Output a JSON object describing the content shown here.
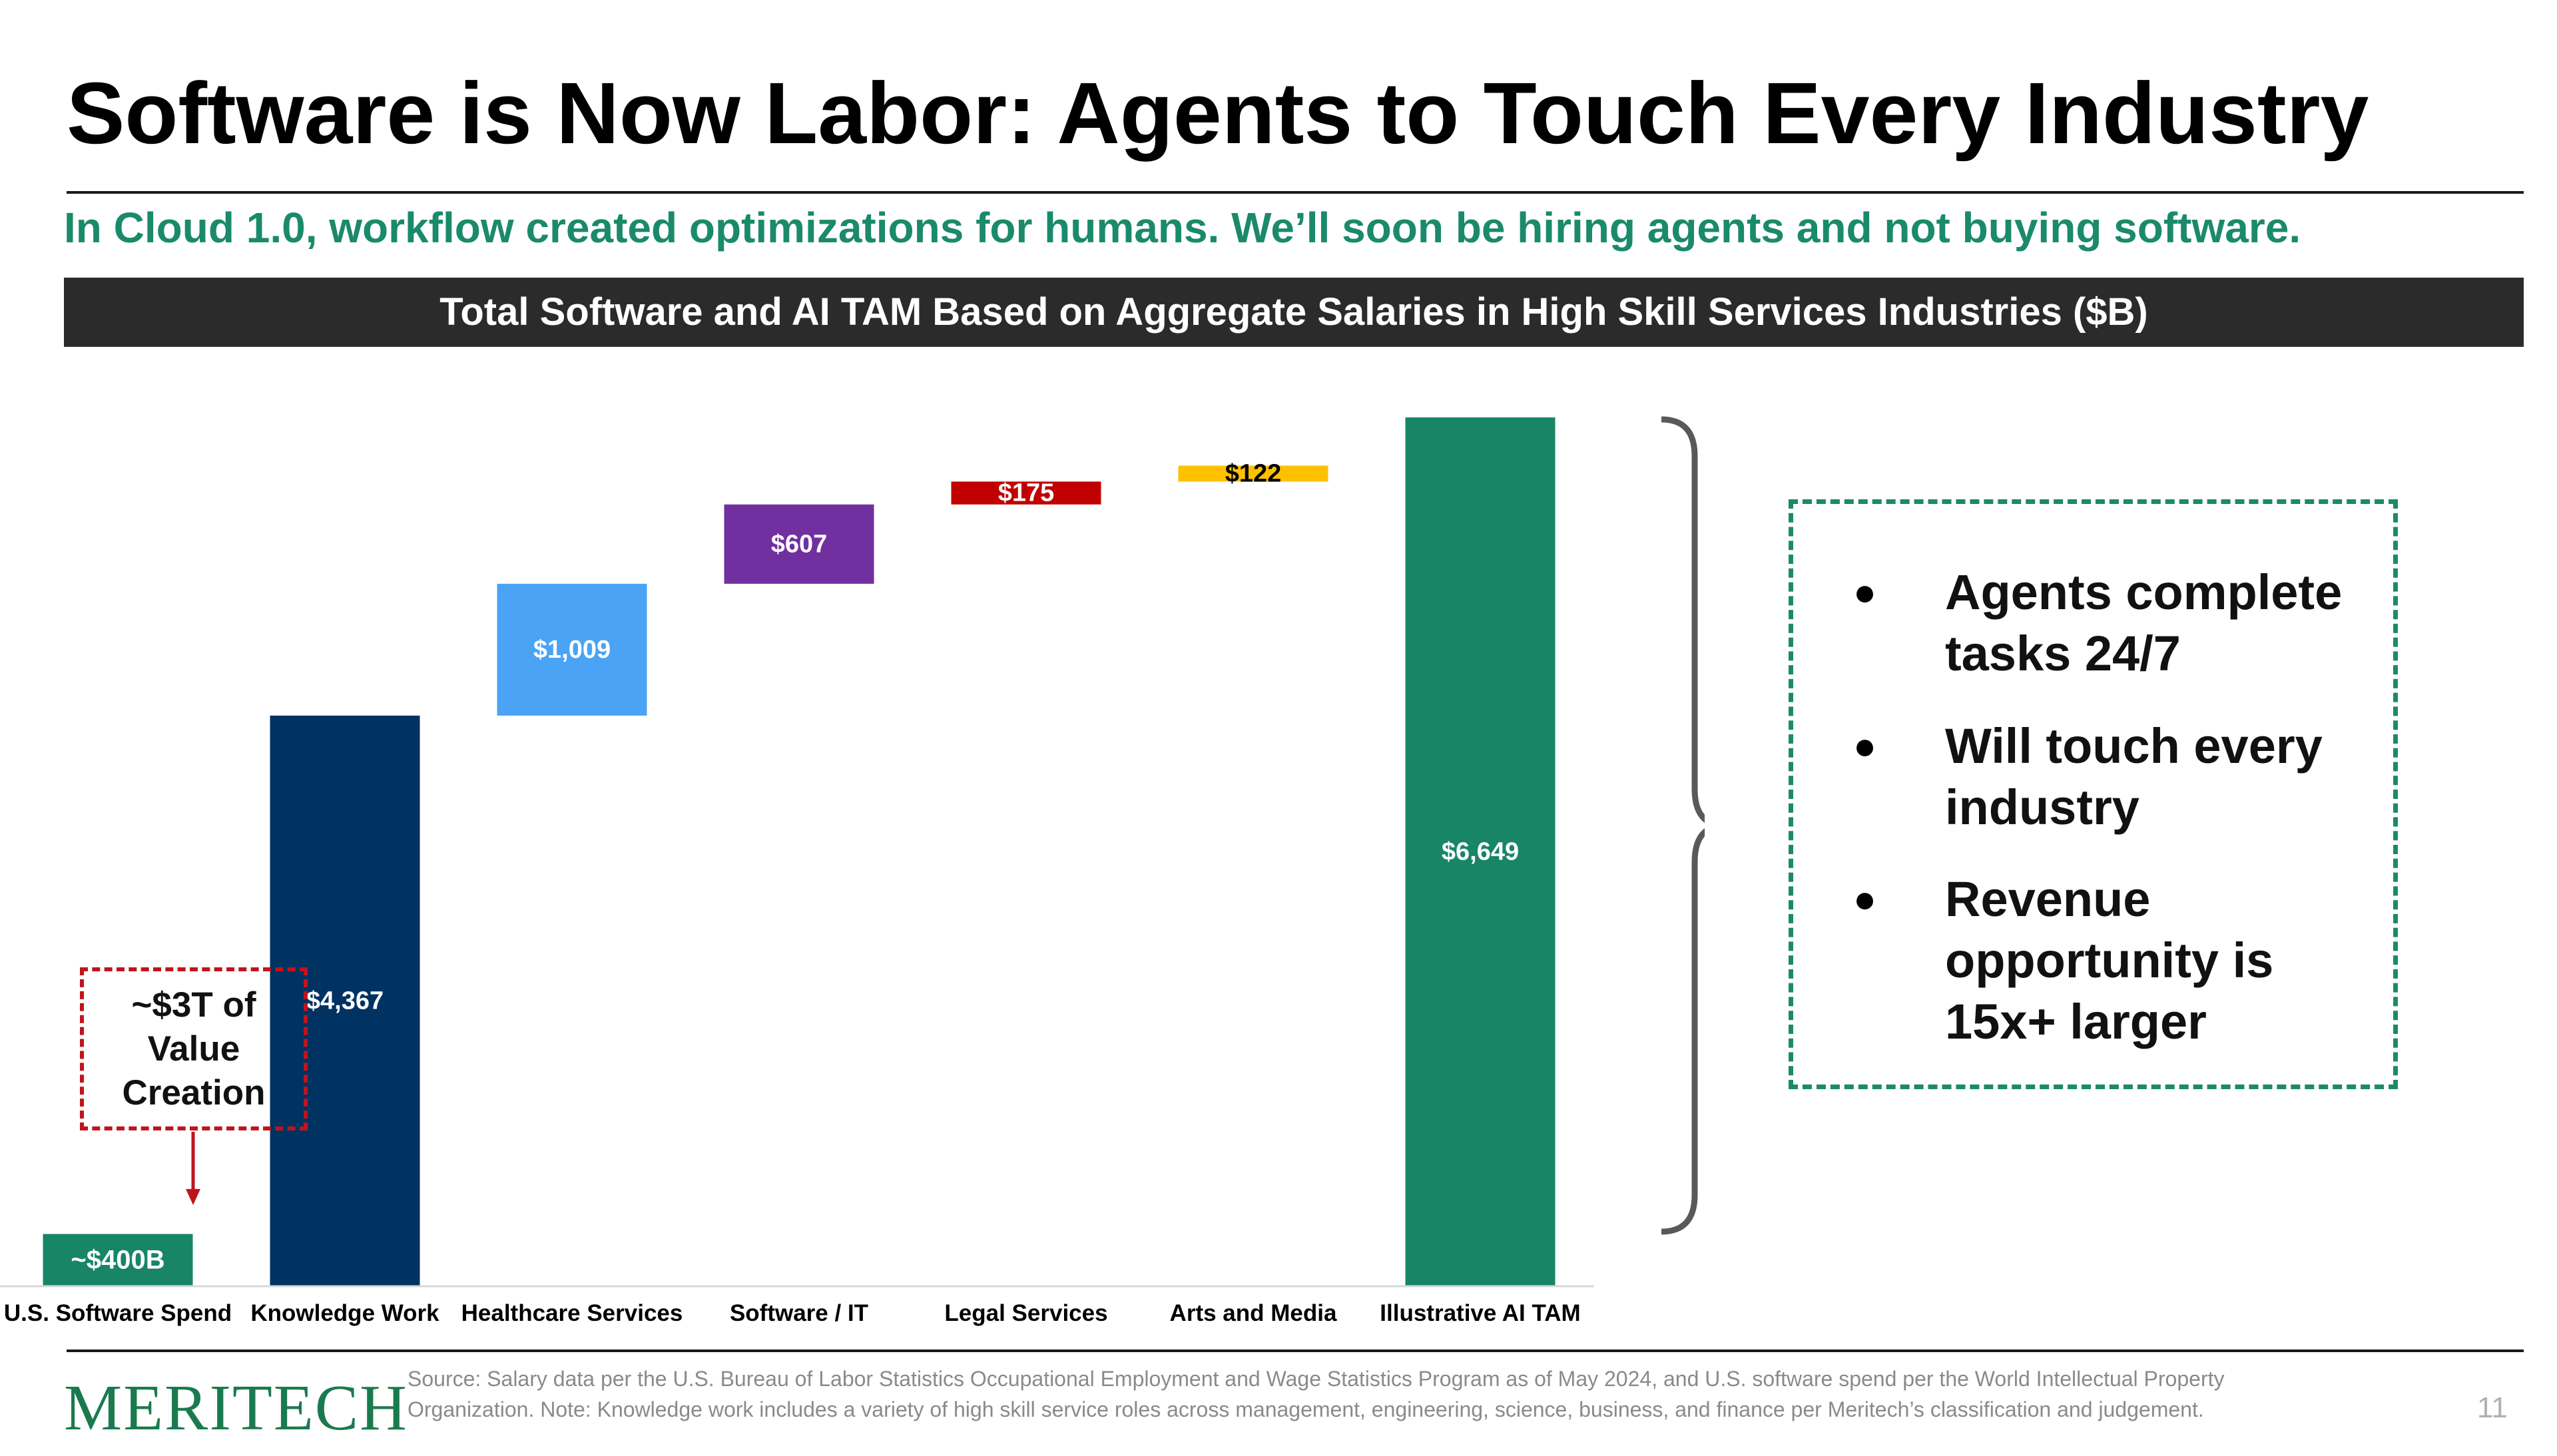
{
  "slide": {
    "title": "Software is Now Labor: Agents to Touch Every Industry",
    "subtitle": "In Cloud 1.0, workflow created optimizations for humans. We’ll soon be hiring agents and not buying software.",
    "chart_banner": "Total Software and AI TAM Based on Aggregate Salaries in High Skill Services Industries ($B)",
    "callout": "~$3T of\nValue\nCreation",
    "bullets": [
      "Agents complete tasks 24/7",
      "Will touch every industry",
      "Revenue opportunity is 15x+ larger"
    ],
    "bullet_glyph": "●",
    "footer": {
      "logo": "MERITECH",
      "source": "Source: Salary data per the U.S. Bureau of Labor Statistics Occupational Employment and Wage Statistics Program as of May 2024, and U.S. software spend per the World Intellectual Property Organization. Note: Knowledge work includes a variety of high skill service roles across management, engineering, science, business, and finance per Meritech’s classification and judgement.",
      "page_number": "11"
    }
  },
  "chart_data": {
    "type": "bar",
    "subtype": "waterfall",
    "title": "Total Software and AI TAM Based on Aggregate Salaries in High Skill Services Industries ($B)",
    "xlabel": "",
    "ylabel": "",
    "grid": false,
    "categories": [
      "U.S. Software Spend",
      "Knowledge Work",
      "Healthcare Services",
      "Software / IT",
      "Legal Services",
      "Arts and Media",
      "Illustrative AI TAM"
    ],
    "values": [
      400,
      4367,
      1009,
      607,
      175,
      122,
      6649
    ],
    "bar_kinds": [
      "base",
      "increment",
      "increment",
      "increment",
      "increment",
      "increment",
      "total"
    ],
    "labels": [
      "~$400B",
      "$4,367",
      "$1,009",
      "$607",
      "$175",
      "$122",
      "$6,649"
    ],
    "colors": [
      "#178566",
      "#003262",
      "#4aa3f5",
      "#7030a0",
      "#c00000",
      "#ffc000",
      "#178566"
    ],
    "label_colors": [
      "#ffffff",
      "#ffffff",
      "#ffffff",
      "#ffffff",
      "#ffffff",
      "#000000",
      "#ffffff"
    ],
    "ylim": [
      0,
      6700
    ],
    "brace_color": "#595959"
  }
}
